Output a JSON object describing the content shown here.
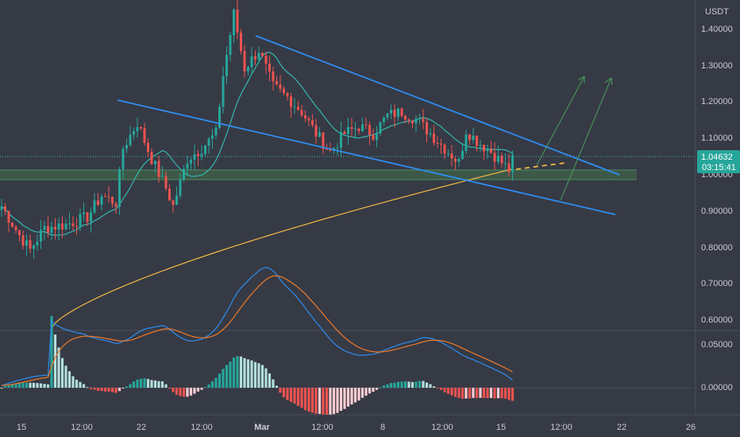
{
  "chart_data": {
    "type": "candlestick",
    "currency": "USDT",
    "price_axis": {
      "ylim": [
        0.55,
        1.47
      ],
      "ticks": [
        "1.40000",
        "1.30000",
        "1.20000",
        "1.10000",
        "1.00000",
        "0.90000",
        "0.80000",
        "0.70000",
        "0.60000"
      ]
    },
    "last_price": {
      "value": "1.04632",
      "countdown": "03:15:41"
    },
    "macd": {
      "ylim": [
        -0.035,
        0.075
      ],
      "ticks": [
        "0.05000",
        "0.00000"
      ]
    },
    "x_ticks": [
      "15",
      "12:00",
      "22",
      "12:00",
      "Mar",
      "12:00",
      "8",
      "12:00",
      "15",
      "12:00",
      "22",
      "26"
    ],
    "colors": {
      "background": "#363a45",
      "up": "#26a69a",
      "down": "#ef5350",
      "ma_slow": "#f5b942",
      "ma_fast": "#35b8b0",
      "channel": "#2e8ef0",
      "projection": "#48a05a",
      "macd_line": "#2e8ef0",
      "signal_line": "#f07a28",
      "support_zone": "#3e5c48"
    }
  }
}
